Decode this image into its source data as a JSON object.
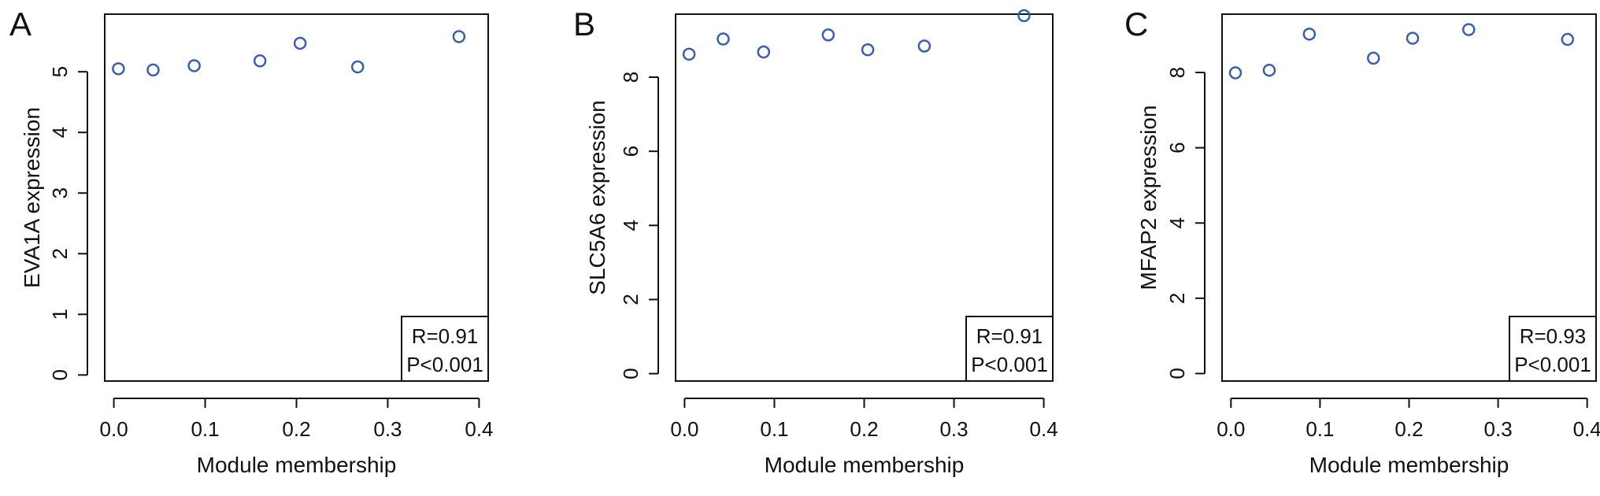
{
  "chart_data": [
    {
      "panel_letter": "A",
      "type": "scatter",
      "xlabel": "Module membership",
      "ylabel": "EVA1A expression",
      "xlim": [
        -0.01,
        0.41
      ],
      "ylim": [
        -0.1,
        5.95
      ],
      "xticks": [
        0.0,
        0.1,
        0.2,
        0.3,
        0.4
      ],
      "xtick_labels": [
        "0.0",
        "0.1",
        "0.2",
        "0.3",
        "0.4"
      ],
      "yticks": [
        0,
        1,
        2,
        3,
        4,
        5
      ],
      "ytick_labels": [
        "0",
        "1",
        "2",
        "3",
        "4",
        "5"
      ],
      "points": [
        {
          "x": 0.005,
          "y": 5.05
        },
        {
          "x": 0.043,
          "y": 5.03
        },
        {
          "x": 0.088,
          "y": 5.1
        },
        {
          "x": 0.16,
          "y": 5.18
        },
        {
          "x": 0.204,
          "y": 5.47
        },
        {
          "x": 0.267,
          "y": 5.08
        },
        {
          "x": 0.378,
          "y": 5.58
        }
      ],
      "stats": {
        "r": "R=0.91",
        "p": "P<0.001"
      },
      "marker_color": "#3a5fb0",
      "legend_position": "bottom-right"
    },
    {
      "panel_letter": "B",
      "type": "scatter",
      "xlabel": "Module membership",
      "ylabel": "SLC5A6 expression",
      "xlim": [
        -0.01,
        0.41
      ],
      "ylim": [
        -0.2,
        9.7
      ],
      "xticks": [
        0.0,
        0.1,
        0.2,
        0.3,
        0.4
      ],
      "xtick_labels": [
        "0.0",
        "0.1",
        "0.2",
        "0.3",
        "0.4"
      ],
      "yticks": [
        0,
        2,
        4,
        6,
        8
      ],
      "ytick_labels": [
        "0",
        "2",
        "4",
        "6",
        "8"
      ],
      "points": [
        {
          "x": 0.005,
          "y": 8.62
        },
        {
          "x": 0.043,
          "y": 9.03
        },
        {
          "x": 0.088,
          "y": 8.68
        },
        {
          "x": 0.16,
          "y": 9.14
        },
        {
          "x": 0.204,
          "y": 8.74
        },
        {
          "x": 0.267,
          "y": 8.84
        },
        {
          "x": 0.378,
          "y": 9.66
        }
      ],
      "stats": {
        "r": "R=0.91",
        "p": "P<0.001"
      },
      "marker_color": "#3a5fb0",
      "legend_position": "bottom-right"
    },
    {
      "panel_letter": "C",
      "type": "scatter",
      "xlabel": "Module membership",
      "ylabel": "MFAP2 expression",
      "xlim": [
        -0.01,
        0.41
      ],
      "ylim": [
        -0.2,
        9.55
      ],
      "xticks": [
        0.0,
        0.1,
        0.2,
        0.3,
        0.4
      ],
      "xtick_labels": [
        "0.0",
        "0.1",
        "0.2",
        "0.3",
        "0.4"
      ],
      "yticks": [
        0,
        2,
        4,
        6,
        8
      ],
      "ytick_labels": [
        "0",
        "2",
        "4",
        "6",
        "8"
      ],
      "points": [
        {
          "x": 0.005,
          "y": 7.99
        },
        {
          "x": 0.043,
          "y": 8.06
        },
        {
          "x": 0.088,
          "y": 9.02
        },
        {
          "x": 0.16,
          "y": 8.38
        },
        {
          "x": 0.204,
          "y": 8.91
        },
        {
          "x": 0.267,
          "y": 9.14
        },
        {
          "x": 0.378,
          "y": 8.88
        }
      ],
      "stats": {
        "r": "R=0.93",
        "p": "P<0.001"
      },
      "marker_color": "#3a5fb0",
      "legend_position": "bottom-right"
    }
  ]
}
